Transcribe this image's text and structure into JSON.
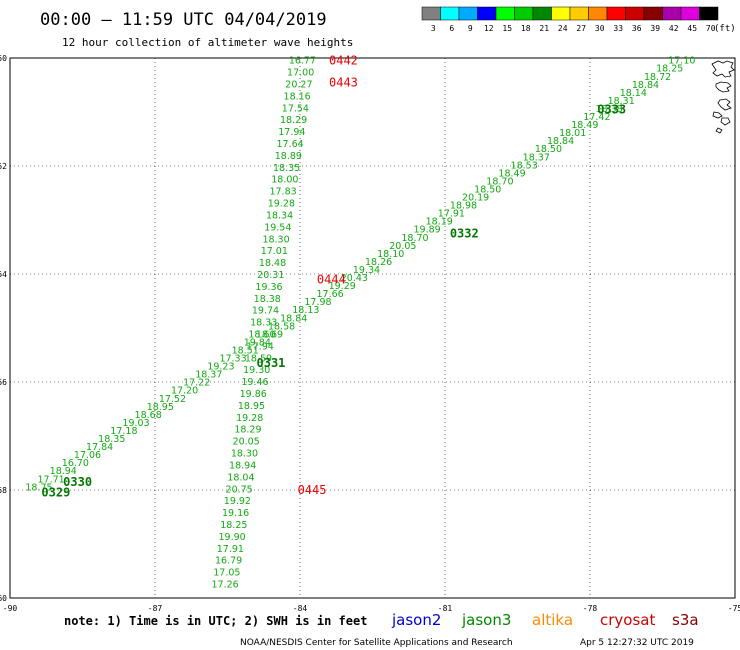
{
  "header": {
    "title": "00:00 – 11:59 UTC 04/04/2019",
    "subtitle": "12 hour collection of altimeter wave heights"
  },
  "legend": {
    "units": "(ft)",
    "bins": [
      {
        "label": "3",
        "color": "#808080"
      },
      {
        "label": "6",
        "color": "#00ffff"
      },
      {
        "label": "9",
        "color": "#00aaff"
      },
      {
        "label": "12",
        "color": "#0000ff"
      },
      {
        "label": "15",
        "color": "#00ff00"
      },
      {
        "label": "18",
        "color": "#00cc00"
      },
      {
        "label": "21",
        "color": "#008800"
      },
      {
        "label": "24",
        "color": "#ffff00"
      },
      {
        "label": "27",
        "color": "#ffcc00"
      },
      {
        "label": "30",
        "color": "#ff8800"
      },
      {
        "label": "33",
        "color": "#ff0000"
      },
      {
        "label": "36",
        "color": "#cc0000"
      },
      {
        "label": "39",
        "color": "#880000"
      },
      {
        "label": "42",
        "color": "#aa00aa"
      },
      {
        "label": "45",
        "color": "#dd00dd"
      },
      {
        "label": "70",
        "color": "#000000"
      }
    ]
  },
  "axes": {
    "lon_ticks": [
      "-90",
      "-87",
      "-84",
      "-81",
      "-78",
      "-75"
    ],
    "lat_ticks": [
      "-50",
      "-52",
      "-54",
      "-56",
      "-58",
      "-60"
    ],
    "lon_range": [
      -90,
      -75
    ],
    "lat_range": [
      -60,
      -50
    ]
  },
  "footer": {
    "note": "note: 1) Time is in UTC; 2) SWH is in feet",
    "satellites": [
      {
        "name": "jason2",
        "color": "#0000cc"
      },
      {
        "name": "jason3",
        "color": "#008800"
      },
      {
        "name": "altika",
        "color": "#ff8800"
      },
      {
        "name": "cryosat",
        "color": "#cc0000"
      },
      {
        "name": "s3a",
        "color": "#880000"
      }
    ],
    "credit": "NOAA/NESDIS Center for Satellite Applications and Research",
    "timestamp": "Apr  5 12:27:32 UTC 2019"
  },
  "tracks": {
    "cryosat_labels": [
      {
        "text": "0442",
        "lon": -83.4,
        "lat": -50.05
      },
      {
        "text": "0443",
        "lon": -83.4,
        "lat": -50.45
      },
      {
        "text": "0444",
        "lon": -83.65,
        "lat": -54.1
      },
      {
        "text": "0445",
        "lon": -84.05,
        "lat": -58.0
      }
    ],
    "jason3_labels": [
      {
        "text": "0333",
        "lon": -77.85,
        "lat": -50.95
      },
      {
        "text": "0332",
        "lon": -80.9,
        "lat": -53.25
      },
      {
        "text": "0331",
        "lon": -84.9,
        "lat": -55.65
      },
      {
        "text": "0330",
        "lon": -88.9,
        "lat": -57.85
      },
      {
        "text": "0329",
        "lon": -89.35,
        "lat": -58.05
      }
    ],
    "track_a": {
      "note": "descending track, lon -84.0 at lat -50.05 to -85.6 at lat -59.75",
      "start": {
        "lon": -83.95,
        "lat": -50.05
      },
      "end": {
        "lon": -85.55,
        "lat": -59.75
      },
      "values": [
        "16.77",
        "17.00",
        "20.27",
        "18.16",
        "17.54",
        "18.29",
        "17.94",
        "17.64",
        "18.89",
        "18.35",
        "18.00",
        "17.83",
        "19.28",
        "18.34",
        "19.54",
        "18.30",
        "17.01",
        "18.48",
        "20.31",
        "19.36",
        "18.38",
        "19.74",
        "18.33",
        "18.60",
        "17.94",
        "18.59",
        "19.30",
        "19.46",
        "19.86",
        "18.95",
        "19.28",
        "18.29",
        "20.05",
        "18.30",
        "18.94",
        "18.04",
        "20.75",
        "19.92",
        "19.16",
        "18.25",
        "19.90",
        "17.91",
        "16.79",
        "17.05",
        "17.26"
      ]
    },
    "track_b": {
      "start": {
        "lon": -76.1,
        "lat": -50.05
      },
      "end": {
        "lon": -89.4,
        "lat": -57.95
      },
      "values": [
        "17.10",
        "18.25",
        "18.72",
        "18.84",
        "18.14",
        "18.31",
        "18.38",
        "17.42",
        "18.49",
        "18.01",
        "18.84",
        "18.50",
        "18.37",
        "18.53",
        "18.49",
        "18.70",
        "18.50",
        "20.19",
        "18.98",
        "17.91",
        "18.19",
        "19.89",
        "18.70",
        "20.05",
        "18.10",
        "18.26",
        "19.34",
        "20.43",
        "19.29",
        "17.66",
        "17.98",
        "18.13",
        "18.84",
        "18.58",
        "18.69",
        "19.84",
        "18.51",
        "17.33",
        "19.23",
        "18.37",
        "17.22",
        "17.20",
        "17.52",
        "18.95",
        "18.68",
        "19.03",
        "17.18",
        "18.35",
        "17.84",
        "17.06",
        "16.70",
        "18.94",
        "17.71",
        "18.75"
      ]
    }
  }
}
